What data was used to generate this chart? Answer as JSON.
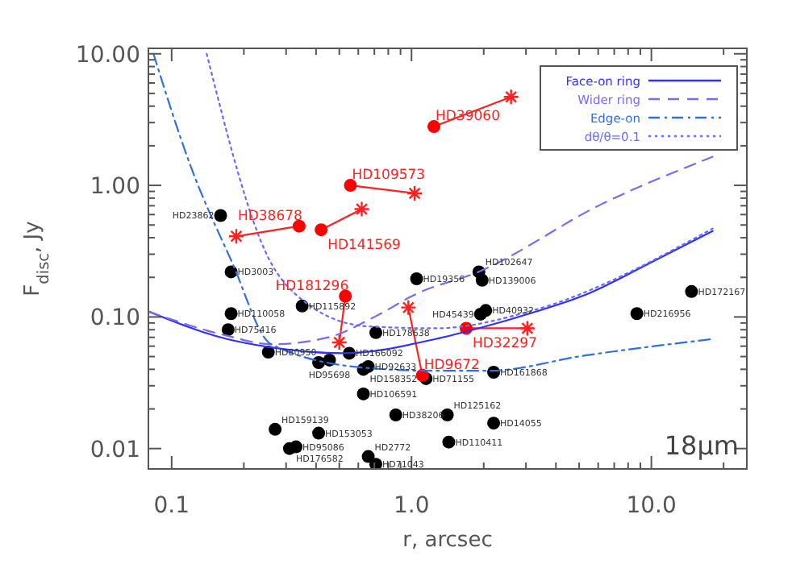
{
  "chart_data": {
    "type": "scatter",
    "xlabel": "r, arcsec",
    "ylabel": "F$_{disc}$, Jy",
    "log": "xy",
    "xlim": [
      0.08,
      25
    ],
    "ylim": [
      0.007,
      11
    ],
    "xticks": [
      {
        "value": 0.1,
        "label": "0.1"
      },
      {
        "value": 0.2,
        "label": null
      },
      {
        "value": 0.3,
        "label": null
      },
      {
        "value": 0.4,
        "label": null
      },
      {
        "value": 0.5,
        "label": null
      },
      {
        "value": 0.6,
        "label": null
      },
      {
        "value": 0.7,
        "label": null
      },
      {
        "value": 0.8,
        "label": null
      },
      {
        "value": 0.9,
        "label": null
      },
      {
        "value": 1,
        "label": "1.0"
      },
      {
        "value": 2,
        "label": null
      },
      {
        "value": 3,
        "label": null
      },
      {
        "value": 4,
        "label": null
      },
      {
        "value": 5,
        "label": null
      },
      {
        "value": 6,
        "label": null
      },
      {
        "value": 7,
        "label": null
      },
      {
        "value": 8,
        "label": null
      },
      {
        "value": 9,
        "label": null
      },
      {
        "value": 10,
        "label": "10.0"
      },
      {
        "value": 20,
        "label": null
      }
    ],
    "yticks": [
      {
        "value": 0.01,
        "label": "0.01"
      },
      {
        "value": 0.02,
        "label": null
      },
      {
        "value": 0.03,
        "label": null
      },
      {
        "value": 0.04,
        "label": null
      },
      {
        "value": 0.05,
        "label": null
      },
      {
        "value": 0.06,
        "label": null
      },
      {
        "value": 0.07,
        "label": null
      },
      {
        "value": 0.08,
        "label": null
      },
      {
        "value": 0.09,
        "label": null
      },
      {
        "value": 0.1,
        "label": "0.10"
      },
      {
        "value": 0.2,
        "label": null
      },
      {
        "value": 0.3,
        "label": null
      },
      {
        "value": 0.4,
        "label": null
      },
      {
        "value": 0.5,
        "label": null
      },
      {
        "value": 0.6,
        "label": null
      },
      {
        "value": 0.7,
        "label": null
      },
      {
        "value": 0.8,
        "label": null
      },
      {
        "value": 0.9,
        "label": null
      },
      {
        "value": 1,
        "label": "1.00"
      },
      {
        "value": 2,
        "label": null
      },
      {
        "value": 3,
        "label": null
      },
      {
        "value": 4,
        "label": null
      },
      {
        "value": 5,
        "label": null
      },
      {
        "value": 6,
        "label": null
      },
      {
        "value": 7,
        "label": null
      },
      {
        "value": 8,
        "label": null
      },
      {
        "value": 9,
        "label": null
      },
      {
        "value": 10,
        "label": "10.00"
      }
    ],
    "legend": "top right",
    "grid": false,
    "series": [
      {
        "type": "scatter",
        "color": "#000000",
        "marker": "circle",
        "x": [
          0.16,
          0.177,
          0.177,
          0.172,
          0.253,
          0.35,
          1.05,
          1.91,
          1.97,
          2.04,
          1.94,
          0.71,
          0.55,
          0.455,
          0.41,
          0.63,
          0.66,
          0.63,
          0.27,
          0.41,
          0.31,
          0.33,
          0.86,
          0.66,
          0.71,
          1.15,
          2.2,
          1.41,
          2.2,
          1.43,
          8.7,
          14.7
        ],
        "values": [
          0.59,
          0.22,
          0.106,
          0.08,
          0.054,
          0.121,
          0.195,
          0.22,
          0.19,
          0.112,
          0.105,
          0.076,
          0.053,
          0.047,
          0.045,
          0.04,
          0.042,
          0.026,
          0.014,
          0.0131,
          0.01,
          0.0103,
          0.018,
          0.0087,
          0.0076,
          0.034,
          0.038,
          0.018,
          0.0156,
          0.0112,
          0.106,
          0.156
        ]
      },
      {
        "type": "line",
        "color": "#ff2020",
        "marker": "none",
        "line_style": "solid",
        "x": [
          0.34,
          0.186
        ],
        "values": [
          0.49,
          0.41
        ]
      },
      {
        "type": "line",
        "color": "#ff2020",
        "marker": "none",
        "line_style": "solid",
        "x": [
          0.42,
          0.62
        ],
        "values": [
          0.46,
          0.66
        ]
      },
      {
        "type": "line",
        "color": "#ff2020",
        "marker": "none",
        "line_style": "solid",
        "x": [
          0.556,
          1.03
        ],
        "values": [
          1.0,
          0.87
        ]
      },
      {
        "type": "line",
        "color": "#ff2020",
        "marker": "none",
        "line_style": "solid",
        "x": [
          1.24,
          2.6
        ],
        "values": [
          2.8,
          4.7
        ]
      },
      {
        "type": "line",
        "color": "#ff2020",
        "marker": "none",
        "line_style": "solid",
        "x": [
          0.53,
          0.5
        ],
        "values": [
          0.144,
          0.064
        ]
      },
      {
        "type": "line",
        "color": "#ff2020",
        "marker": "none",
        "line_style": "solid",
        "x": [
          1.11,
          0.97
        ],
        "values": [
          0.036,
          0.118
        ]
      },
      {
        "type": "line",
        "color": "#ff2020",
        "marker": "none",
        "line_style": "solid",
        "x": [
          1.69,
          3.04
        ],
        "values": [
          0.082,
          0.082
        ]
      },
      {
        "type": "scatter",
        "color": "#ff0000",
        "marker": "circle",
        "x": [
          0.34,
          0.42,
          0.556,
          1.24,
          0.53,
          1.11,
          1.69
        ],
        "values": [
          0.49,
          0.46,
          1.0,
          2.8,
          0.144,
          0.036,
          0.082
        ]
      },
      {
        "type": "scatter",
        "color": "#ff2020",
        "marker": "cross",
        "x": [
          0.186,
          0.62,
          1.03,
          2.6,
          0.5,
          0.97,
          3.04
        ],
        "values": [
          0.41,
          0.66,
          0.87,
          4.7,
          0.064,
          0.118,
          0.082
        ]
      },
      {
        "type": "line",
        "name": "Face-on ring",
        "color": "#3030ff",
        "marker": "none",
        "line_style": "solid",
        "x": [
          0.08,
          0.17,
          0.256,
          0.52,
          1.26,
          1.9,
          3.2,
          5.3,
          9.85,
          18
        ],
        "values": [
          0.11,
          0.068,
          0.059,
          0.053,
          0.068,
          0.082,
          0.108,
          0.147,
          0.257,
          0.45
        ]
      },
      {
        "type": "line",
        "name": "Wider ring",
        "color": "#7a6af0",
        "marker": "none",
        "line_style": "dashed",
        "x": [
          0.08,
          0.17,
          0.26,
          0.45,
          0.7,
          1.05,
          1.9,
          6.2,
          18
        ],
        "values": [
          0.11,
          0.072,
          0.062,
          0.07,
          0.1,
          0.15,
          0.22,
          0.72,
          1.65
        ]
      },
      {
        "type": "line",
        "name": "Edge-on",
        "color": "#3070e0",
        "marker": "none",
        "line_style": "dashdot",
        "x": [
          0.084,
          0.12,
          0.177,
          0.26,
          0.65,
          1.26,
          2.1,
          5.3,
          18
        ],
        "values": [
          10,
          1.4,
          0.27,
          0.062,
          0.041,
          0.039,
          0.039,
          0.051,
          0.068
        ]
      },
      {
        "type": "line",
        "name": "dθ/θ=0.1",
        "color": "#6a6aff",
        "marker": "none",
        "line_style": "dotted",
        "x": [
          0.14,
          0.256,
          0.35,
          0.65,
          1.26,
          3.2,
          18
        ],
        "values": [
          10,
          0.27,
          0.135,
          0.085,
          0.082,
          0.112,
          0.47
        ]
      }
    ],
    "annotations": [
      {
        "text": "HD23862",
        "x": 0.16,
        "y": 0.59
      },
      {
        "text": "HD3003",
        "x": 0.177,
        "y": 0.22
      },
      {
        "text": "HD110058",
        "x": 0.177,
        "y": 0.106
      },
      {
        "text": "HD75416",
        "x": 0.172,
        "y": 0.08
      },
      {
        "text": "HD80950",
        "x": 0.253,
        "y": 0.054
      },
      {
        "text": "HD115892",
        "x": 0.35,
        "y": 0.121
      },
      {
        "text": "HD19356",
        "x": 1.05,
        "y": 0.195
      },
      {
        "text": "HD102647",
        "x": 1.91,
        "y": 0.22
      },
      {
        "text": "HD139006",
        "x": 1.97,
        "y": 0.19
      },
      {
        "text": "HD40932",
        "x": 2.04,
        "y": 0.112
      },
      {
        "text": "HD45439",
        "x": 1.94,
        "y": 0.105
      },
      {
        "text": "HD178638",
        "x": 0.71,
        "y": 0.076
      },
      {
        "text": "HD166092",
        "x": 0.55,
        "y": 0.053
      },
      {
        "text": "HD95698",
        "x": 0.455,
        "y": 0.047
      },
      {
        "text": "HD158352",
        "x": 0.63,
        "y": 0.04
      },
      {
        "text": "HD92633",
        "x": 0.66,
        "y": 0.042
      },
      {
        "text": "HD106591",
        "x": 0.63,
        "y": 0.026
      },
      {
        "text": "HD159139",
        "x": 0.27,
        "y": 0.014
      },
      {
        "text": "HD153053",
        "x": 0.41,
        "y": 0.0131
      },
      {
        "text": "HD176582",
        "x": 0.31,
        "y": 0.01
      },
      {
        "text": "HD95086",
        "x": 0.33,
        "y": 0.0103
      },
      {
        "text": "HD38206",
        "x": 0.86,
        "y": 0.018
      },
      {
        "text": "HD2772",
        "x": 0.66,
        "y": 0.0087
      },
      {
        "text": "HD71043",
        "x": 0.71,
        "y": 0.0076
      },
      {
        "text": "HD71155",
        "x": 1.15,
        "y": 0.034
      },
      {
        "text": "HD161868",
        "x": 2.2,
        "y": 0.038
      },
      {
        "text": "HD125162",
        "x": 1.41,
        "y": 0.018
      },
      {
        "text": "HD14055",
        "x": 2.2,
        "y": 0.0156
      },
      {
        "text": "HD110411",
        "x": 1.43,
        "y": 0.0112
      },
      {
        "text": "HD216956",
        "x": 8.7,
        "y": 0.106
      },
      {
        "text": "HD172167",
        "x": 14.7,
        "y": 0.156
      },
      {
        "text": "HD38678",
        "x": 0.34,
        "y": 0.49
      },
      {
        "text": "HD141569",
        "x": 0.42,
        "y": 0.46
      },
      {
        "text": "HD109573",
        "x": 0.556,
        "y": 1.0
      },
      {
        "text": "HD39060",
        "x": 1.24,
        "y": 2.8
      },
      {
        "text": "HD181296",
        "x": 0.53,
        "y": 0.144
      },
      {
        "text": "HD9672",
        "x": 1.11,
        "y": 0.036
      },
      {
        "text": "HD32297",
        "x": 1.69,
        "y": 0.082
      },
      "18μm"
    ]
  }
}
